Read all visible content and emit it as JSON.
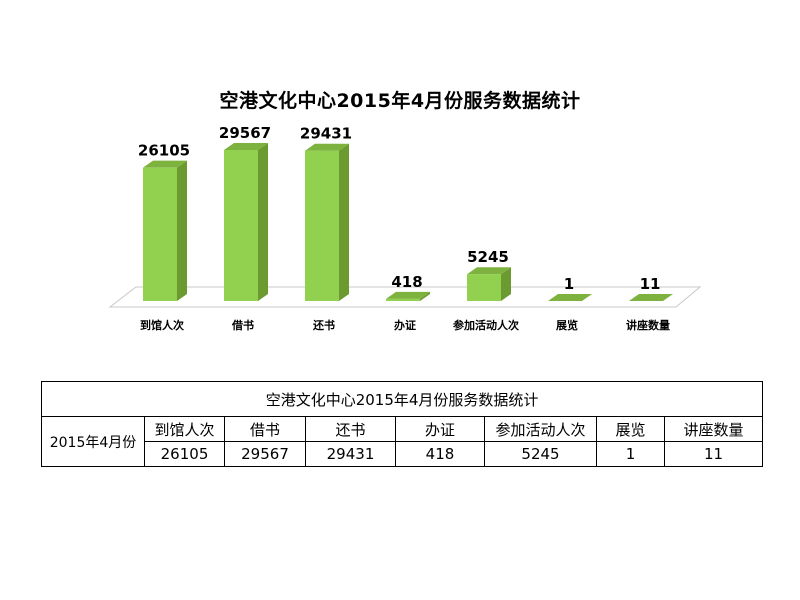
{
  "chart_data": {
    "type": "bar",
    "title": "空港文化中心2015年4月份服务数据统计",
    "categories": [
      "到馆人次",
      "借书",
      "还书",
      "办证",
      "参加活动人次",
      "展览",
      "讲座数量"
    ],
    "values": [
      26105,
      29567,
      29431,
      418,
      5245,
      1,
      11
    ],
    "ylim": [
      0,
      29567
    ],
    "grid": false,
    "legend": "none",
    "bar_color": "#92D050",
    "bar_side_color": "#6A9A30",
    "bar_top_color": "#7EB23E"
  },
  "table": {
    "title": "空港文化中心2015年4月份服务数据统计",
    "row_header": "2015年4月份",
    "headers": [
      "到馆人次",
      "借书",
      "还书",
      "办证",
      "参加活动人次",
      "展览",
      "讲座数量"
    ],
    "values": [
      "26105",
      "29567",
      "29431",
      "418",
      "5245",
      "1",
      "11"
    ]
  }
}
